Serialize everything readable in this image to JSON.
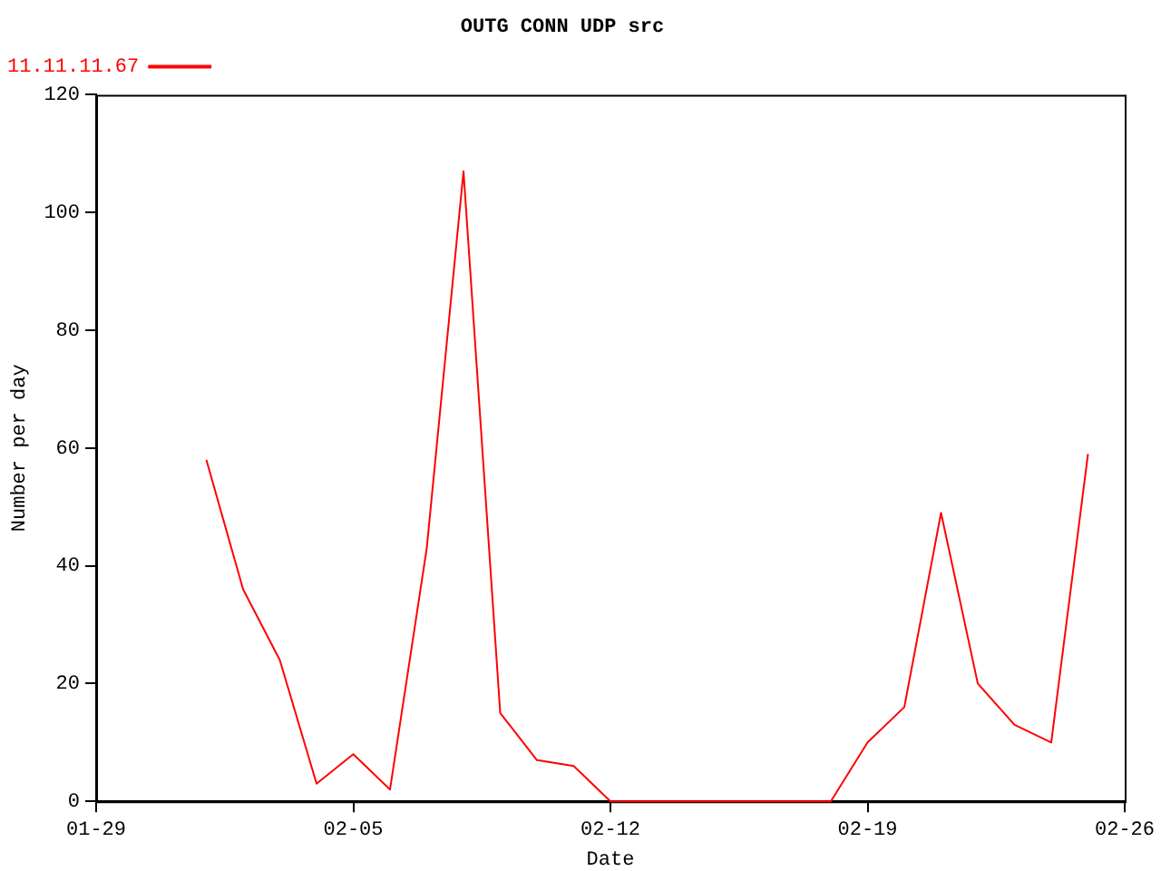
{
  "chart_data": {
    "type": "line",
    "title": "OUTG CONN UDP src",
    "xlabel": "Date",
    "ylabel": "Number per day",
    "x": [
      "--02-01",
      "--02-02",
      "--02-03",
      "--02-04",
      "--02-05",
      "--02-06",
      "--02-07",
      "--02-08",
      "--02-09",
      "--02-10",
      "--02-11",
      "--02-12",
      "--02-13",
      "--02-14",
      "--02-15",
      "--02-16",
      "--02-17",
      "--02-18",
      "--02-19",
      "--02-20",
      "--02-21",
      "--02-22",
      "--02-23",
      "--02-24",
      "--02-25"
    ],
    "series": [
      {
        "name": "11.11.11.67",
        "color": "#ff0000",
        "values": [
          58,
          36,
          24,
          3,
          8,
          2,
          43,
          107,
          15,
          7,
          6,
          0,
          0,
          0,
          0,
          0,
          0,
          0,
          10,
          16,
          49,
          20,
          13,
          10,
          59
        ]
      }
    ],
    "xlim": [
      "--01-29",
      "--02-26"
    ],
    "xticks": [
      {
        "value": "--01-29",
        "label": "01-29"
      },
      {
        "value": "--02-05",
        "label": "02-05"
      },
      {
        "value": "--02-12",
        "label": "02-12"
      },
      {
        "value": "--02-19",
        "label": "02-19"
      },
      {
        "value": "--02-26",
        "label": "02-26"
      }
    ],
    "ylim": [
      0,
      120
    ],
    "yticks": [
      0,
      20,
      40,
      60,
      80,
      100,
      120
    ],
    "grid": false,
    "legend": "top left",
    "marker": "none",
    "line_style": "solid"
  }
}
